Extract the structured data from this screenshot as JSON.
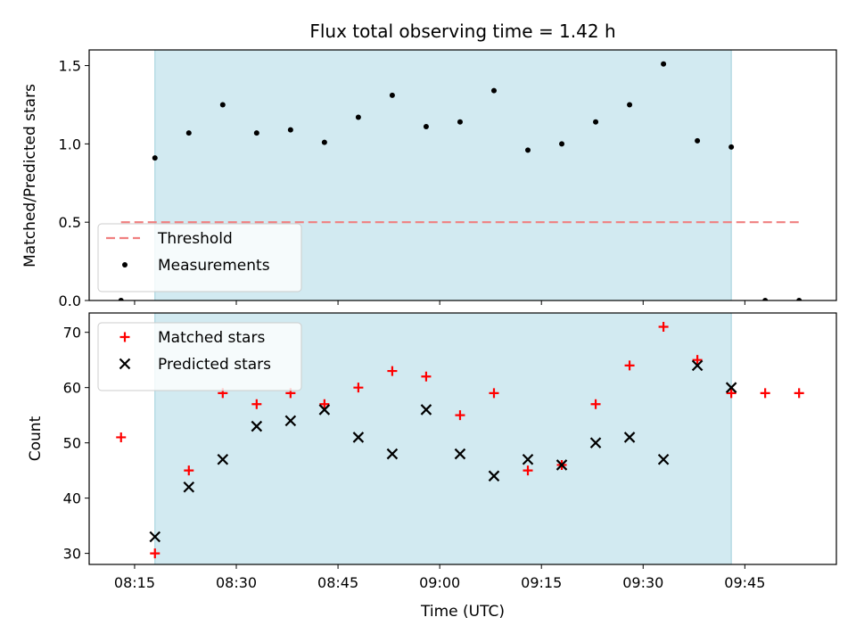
{
  "chart_data": {
    "title": "Flux total observing time = 1.42 h",
    "xlabel": "Time (UTC)",
    "x_ticks": [
      "08:15",
      "08:30",
      "08:45",
      "09:00",
      "09:15",
      "09:30",
      "09:45"
    ],
    "x_tick_minutes": [
      495,
      510,
      525,
      540,
      555,
      570,
      585
    ],
    "xlim_minutes": [
      488.3,
      598.5
    ],
    "shaded_interval_minutes": [
      498,
      583
    ],
    "shade_color": "#add8e6",
    "panels": [
      {
        "type": "scatter",
        "ylabel": "Matched/Predicted stars",
        "ylim": [
          0,
          1.6
        ],
        "y_ticks": [
          "0.0",
          "0.5",
          "1.0",
          "1.5"
        ],
        "y_tick_values": [
          0,
          0.5,
          1.0,
          1.5
        ],
        "threshold": {
          "name": "Threshold",
          "value": 0.5,
          "x_range_minutes": [
            493,
            593
          ],
          "color": "#f08080"
        },
        "series": [
          {
            "name": "Measurements",
            "marker": "dot",
            "color": "#000000",
            "x_minutes": [
              493,
              498,
              503,
              508,
              513,
              518,
              523,
              528,
              533,
              538,
              543,
              548,
              553,
              558,
              563,
              568,
              573,
              578,
              583,
              588,
              593
            ],
            "y": [
              0.0,
              0.91,
              1.07,
              1.25,
              1.07,
              1.09,
              1.01,
              1.17,
              1.31,
              1.11,
              1.14,
              1.34,
              0.96,
              1.0,
              1.14,
              1.25,
              1.51,
              1.02,
              0.98,
              0.0,
              0.0
            ]
          }
        ],
        "legend_position": "lower-left"
      },
      {
        "type": "scatter",
        "ylabel": "Count",
        "ylim": [
          28,
          73.5
        ],
        "y_ticks": [
          "30",
          "40",
          "50",
          "60",
          "70"
        ],
        "y_tick_values": [
          30,
          40,
          50,
          60,
          70
        ],
        "series": [
          {
            "name": "Matched stars",
            "marker": "plus",
            "color": "#ff0000",
            "x_minutes": [
              493,
              498,
              503,
              508,
              513,
              518,
              523,
              528,
              533,
              538,
              543,
              548,
              553,
              558,
              563,
              568,
              573,
              578,
              583,
              588,
              593
            ],
            "y": [
              51,
              30,
              45,
              59,
              57,
              59,
              57,
              60,
              63,
              62,
              55,
              59,
              45,
              46,
              57,
              64,
              71,
              65,
              59,
              59,
              59
            ]
          },
          {
            "name": "Predicted stars",
            "marker": "x",
            "color": "#000000",
            "x_minutes": [
              498,
              503,
              508,
              513,
              518,
              523,
              528,
              533,
              538,
              543,
              548,
              553,
              558,
              563,
              568,
              573,
              578,
              583
            ],
            "y": [
              33,
              42,
              47,
              53,
              54,
              56,
              51,
              48,
              56,
              48,
              44,
              47,
              46,
              50,
              51,
              47,
              64,
              60
            ]
          }
        ],
        "legend_position": "top-left"
      }
    ]
  }
}
